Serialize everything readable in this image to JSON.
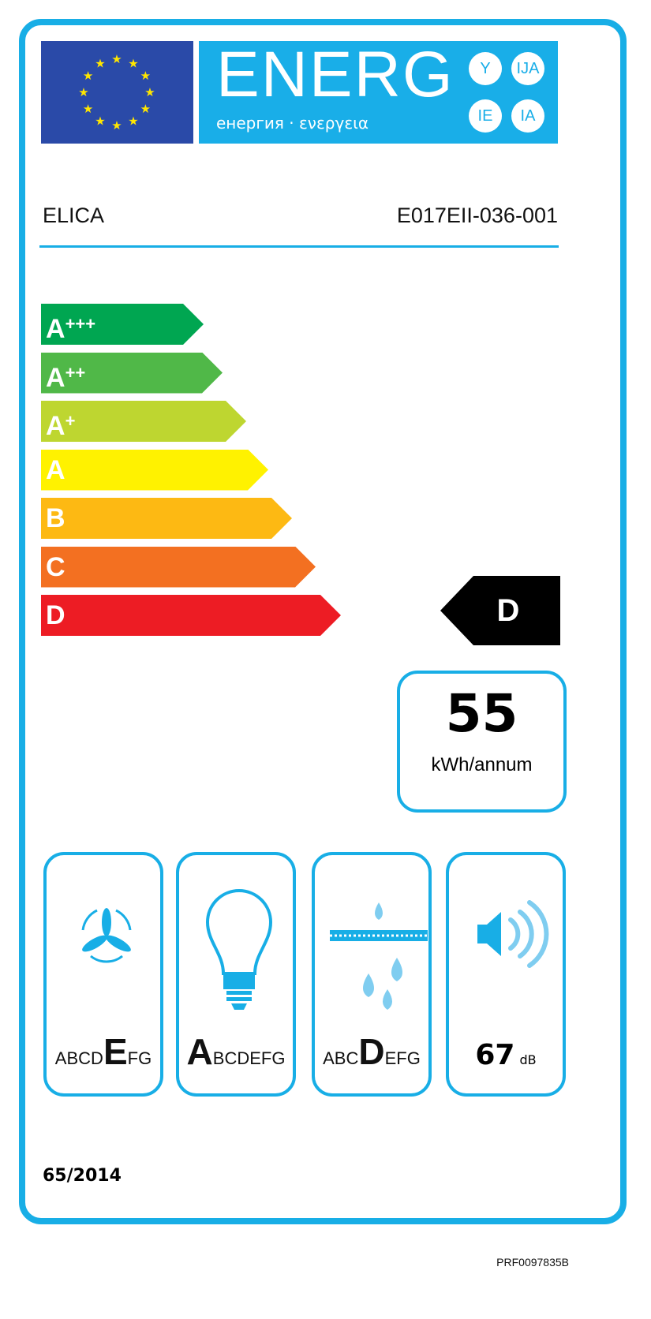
{
  "header": {
    "logo_text": "ENERG",
    "subtitle": "енергия · ενεργεια",
    "suffixes": [
      "Y",
      "IJA",
      "IE",
      "IA"
    ]
  },
  "supplier": "ELICA",
  "model": "E017EII-036-001",
  "scale": [
    {
      "letter": "A",
      "plus": "+++",
      "color": "#00a651"
    },
    {
      "letter": "A",
      "plus": "++",
      "color": "#50b848"
    },
    {
      "letter": "A",
      "plus": "+",
      "color": "#bed630"
    },
    {
      "letter": "A",
      "plus": "",
      "color": "#fff200"
    },
    {
      "letter": "B",
      "plus": "",
      "color": "#fdb913"
    },
    {
      "letter": "C",
      "plus": "",
      "color": "#f37021"
    },
    {
      "letter": "D",
      "plus": "",
      "color": "#ed1c24"
    }
  ],
  "rating": "D",
  "energy": {
    "value": "55",
    "unit": "kWh/annum"
  },
  "sub_ratings": [
    {
      "icon": "fan-icon",
      "classes": "ABCDEFG",
      "selected": "E"
    },
    {
      "icon": "lightbulb-icon",
      "classes": "ABCDEFG",
      "selected": "A"
    },
    {
      "icon": "grease-filter-icon",
      "classes": "ABCDEFG",
      "selected": "D"
    }
  ],
  "noise": {
    "value": "67",
    "unit": "dB"
  },
  "regulation": "65/2014",
  "reference": "PRF0097835B",
  "accent_color": "#18aee6"
}
